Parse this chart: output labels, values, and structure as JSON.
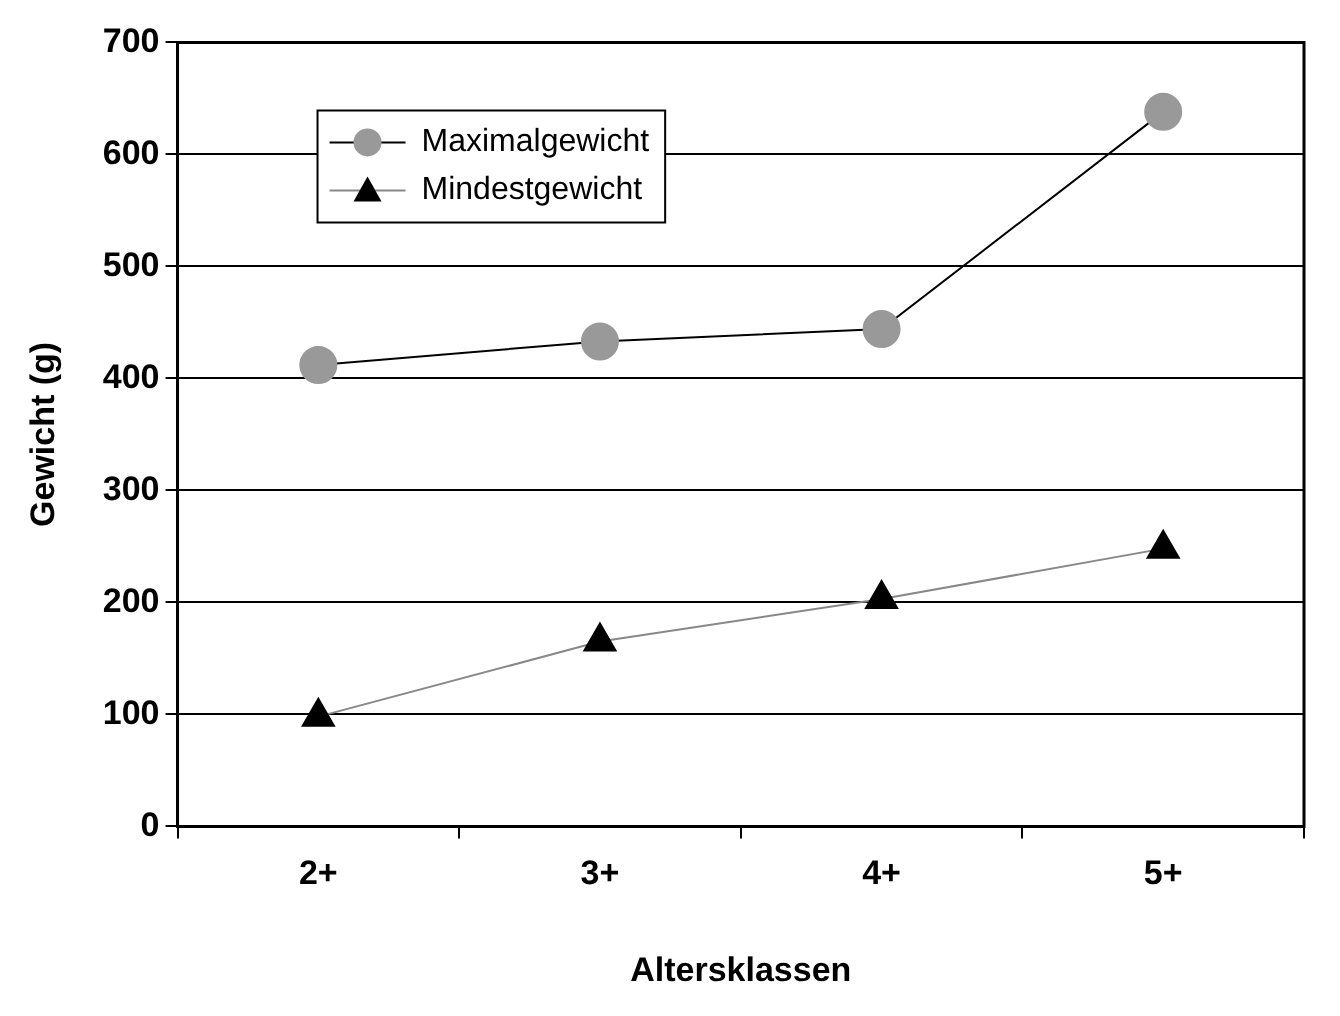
{
  "chart_data": {
    "type": "line",
    "xlabel": "Altersklassen",
    "ylabel": "Gewicht (g)",
    "categories": [
      "2+",
      "3+",
      "4+",
      "5+"
    ],
    "series": [
      {
        "name": "Maximalgewicht",
        "color": "#999999",
        "marker": "circle",
        "values": [
          412,
          433,
          444,
          638
        ]
      },
      {
        "name": "Mindestgewicht",
        "color": "#000000",
        "marker": "triangle",
        "values": [
          98,
          165,
          203,
          248
        ]
      }
    ],
    "ylim": [
      0,
      700
    ],
    "yticks": [
      0,
      100,
      200,
      300,
      400,
      500,
      600,
      700
    ],
    "grid": "y",
    "legend": "top left",
    "line_style": "solid"
  }
}
